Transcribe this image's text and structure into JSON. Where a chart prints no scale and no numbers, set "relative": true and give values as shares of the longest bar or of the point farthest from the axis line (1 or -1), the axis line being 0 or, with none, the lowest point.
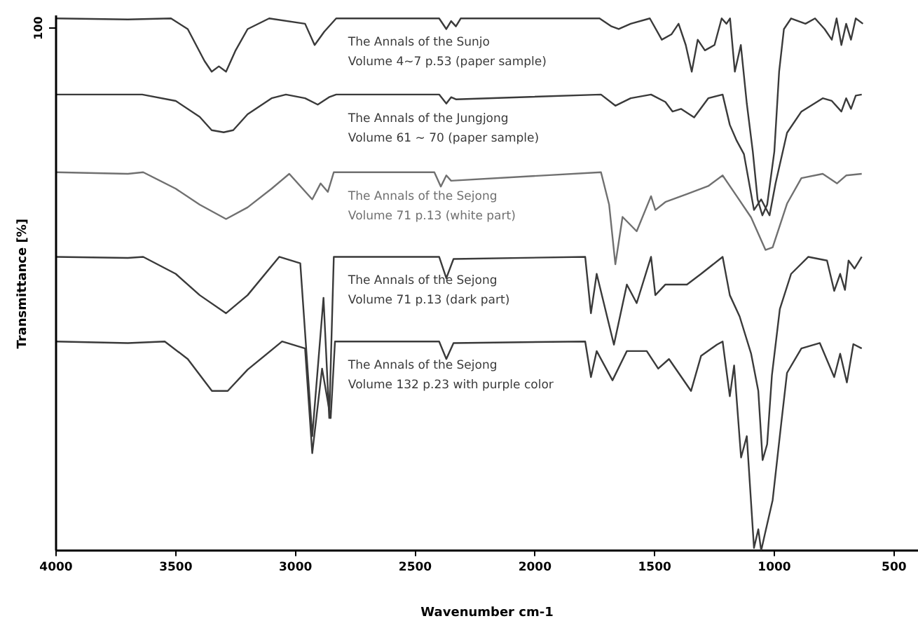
{
  "chart_data": {
    "type": "line",
    "relative": true,
    "xlabel": "Wavenumber cm-1",
    "ylabel": "Transmittance [%]",
    "annotations": [
      "100"
    ],
    "xlim": [
      4000,
      400
    ],
    "xticks": [
      4000,
      3500,
      3000,
      2500,
      2000,
      1500,
      1000,
      500
    ],
    "grid": false,
    "legend": false,
    "marker": "none",
    "line_style": "solid",
    "series": [
      {
        "name": "The Annals of the Sunjo\nVolume 4~7 p.53 (paper sample)",
        "color": "#3a3a3a",
        "x": [
          4000,
          3700,
          3520,
          3450,
          3380,
          3350,
          3320,
          3290,
          3250,
          3200,
          3110,
          2960,
          2920,
          2880,
          2830,
          2400,
          2370,
          2350,
          2330,
          2310,
          1730,
          1680,
          1650,
          1600,
          1520,
          1470,
          1430,
          1400,
          1370,
          1345,
          1320,
          1290,
          1250,
          1220,
          1200,
          1185,
          1165,
          1140,
          1115,
          1090,
          1070,
          1050,
          1030,
          1000,
          980,
          960,
          930,
          870,
          830,
          790,
          760,
          740,
          720,
          700,
          680,
          660,
          630
        ],
        "values": [
          1.0,
          0.998,
          1.0,
          0.98,
          0.92,
          0.9,
          0.91,
          0.9,
          0.94,
          0.98,
          1.0,
          0.99,
          0.95,
          0.975,
          1.0,
          1.0,
          0.98,
          0.995,
          0.985,
          1.0,
          1.0,
          0.985,
          0.98,
          0.99,
          1.0,
          0.96,
          0.97,
          0.99,
          0.95,
          0.9,
          0.96,
          0.94,
          0.95,
          1.0,
          0.99,
          1.0,
          0.9,
          0.95,
          0.84,
          0.75,
          0.66,
          0.63,
          0.65,
          0.75,
          0.9,
          0.98,
          1.0,
          0.99,
          1.0,
          0.98,
          0.96,
          1.0,
          0.95,
          0.99,
          0.96,
          1.0,
          0.99
        ]
      },
      {
        "name": "The Annals of the Jungjong\nVolume 61 ~ 70 (paper sample)",
        "color": "#3a3a3a",
        "x": [
          4000,
          3640,
          3500,
          3400,
          3350,
          3300,
          3260,
          3200,
          3100,
          3040,
          2960,
          2907,
          2860,
          2830,
          2400,
          2370,
          2350,
          2330,
          1724,
          1664,
          1600,
          1515,
          1455,
          1425,
          1390,
          1335,
          1276,
          1216,
          1186,
          1157,
          1127,
          1085,
          1055,
          1020,
          995,
          947,
          887,
          798,
          760,
          720,
          700,
          680,
          660,
          635
        ],
        "values": [
          0.857,
          0.857,
          0.845,
          0.815,
          0.79,
          0.786,
          0.79,
          0.82,
          0.85,
          0.857,
          0.85,
          0.838,
          0.852,
          0.857,
          0.857,
          0.84,
          0.852,
          0.848,
          0.857,
          0.836,
          0.85,
          0.857,
          0.843,
          0.825,
          0.83,
          0.814,
          0.85,
          0.857,
          0.8,
          0.77,
          0.745,
          0.64,
          0.66,
          0.63,
          0.69,
          0.785,
          0.825,
          0.85,
          0.845,
          0.825,
          0.85,
          0.83,
          0.855,
          0.857
        ]
      },
      {
        "name": "The Annals of the Sejong\nVolume 71 p.13 (white part)",
        "color": "#707070",
        "x": [
          4000,
          3700,
          3636,
          3500,
          3400,
          3290,
          3200,
          3100,
          3026,
          2930,
          2895,
          2865,
          2840,
          2420,
          2393,
          2370,
          2350,
          1724,
          1690,
          1664,
          1634,
          1575,
          1515,
          1497,
          1455,
          1365,
          1276,
          1216,
          1157,
          1097,
          1037,
          1007,
          947,
          887,
          798,
          738,
          700,
          635
        ],
        "values": [
          0.711,
          0.708,
          0.711,
          0.68,
          0.65,
          0.623,
          0.645,
          0.68,
          0.708,
          0.66,
          0.69,
          0.674,
          0.711,
          0.711,
          0.684,
          0.705,
          0.695,
          0.711,
          0.65,
          0.538,
          0.627,
          0.6,
          0.666,
          0.64,
          0.655,
          0.67,
          0.685,
          0.705,
          0.666,
          0.626,
          0.565,
          0.57,
          0.652,
          0.7,
          0.708,
          0.69,
          0.705,
          0.708
        ]
      },
      {
        "name": "The Annals of the Sejong\nVolume 71 p.13 (dark part)",
        "color": "#3a3a3a",
        "x": [
          4000,
          3700,
          3636,
          3500,
          3400,
          3290,
          3200,
          3068,
          2980,
          2930,
          2883,
          2859,
          2840,
          2400,
          2370,
          2340,
          1790,
          1766,
          1742,
          1670,
          1616,
          1575,
          1515,
          1497,
          1455,
          1365,
          1306,
          1216,
          1186,
          1145,
          1097,
          1067,
          1049,
          1030,
          1010,
          977,
          930,
          858,
          780,
          750,
          725,
          705,
          690,
          665,
          635
        ],
        "values": [
          0.552,
          0.55,
          0.552,
          0.52,
          0.48,
          0.446,
          0.48,
          0.552,
          0.54,
          0.215,
          0.475,
          0.249,
          0.552,
          0.552,
          0.512,
          0.548,
          0.552,
          0.446,
          0.52,
          0.387,
          0.5,
          0.465,
          0.552,
          0.48,
          0.5,
          0.5,
          0.52,
          0.552,
          0.48,
          0.44,
          0.37,
          0.3,
          0.17,
          0.2,
          0.33,
          0.454,
          0.52,
          0.552,
          0.545,
          0.488,
          0.52,
          0.49,
          0.545,
          0.53,
          0.552
        ]
      },
      {
        "name": "The Annals of the Sejong\nVolume 132 p.23 with purple color",
        "color": "#3a3a3a",
        "x": [
          4000,
          3700,
          3546,
          3450,
          3349,
          3283,
          3200,
          3056,
          2960,
          2930,
          2889,
          2853,
          2835,
          2400,
          2370,
          2340,
          1790,
          1766,
          1742,
          1676,
          1616,
          1533,
          1485,
          1440,
          1348,
          1306,
          1240,
          1216,
          1186,
          1168,
          1139,
          1115,
          1085,
          1067,
          1055,
          1040,
          1007,
          971,
          947,
          887,
          810,
          750,
          725,
          697,
          670,
          635
        ],
        "values": [
          0.393,
          0.39,
          0.393,
          0.36,
          0.3,
          0.3,
          0.34,
          0.393,
          0.38,
          0.183,
          0.342,
          0.249,
          0.393,
          0.393,
          0.36,
          0.39,
          0.393,
          0.326,
          0.375,
          0.32,
          0.375,
          0.375,
          0.342,
          0.36,
          0.3,
          0.366,
          0.387,
          0.393,
          0.29,
          0.348,
          0.175,
          0.215,
          0.005,
          0.04,
          0.0,
          0.03,
          0.095,
          0.24,
          0.334,
          0.38,
          0.39,
          0.326,
          0.37,
          0.316,
          0.388,
          0.38
        ]
      }
    ]
  }
}
